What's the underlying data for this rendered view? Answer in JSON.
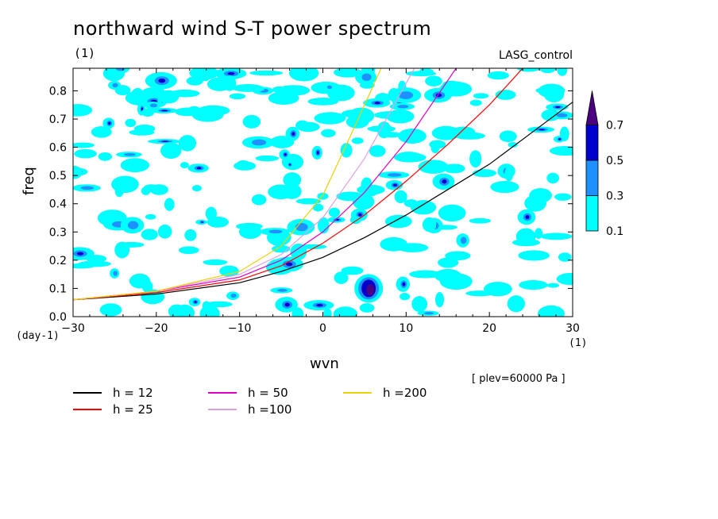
{
  "chart_data": {
    "type": "heatmap",
    "title": "northward wind S-T power spectrum",
    "subtitle_left": "(1)",
    "subtitle_right": "LASG_control",
    "xlabel": "wvn",
    "xlabel_unit": "(1)",
    "ylabel": "freq",
    "ylabel_unit": "(day-1)",
    "xlim": [
      -30,
      30
    ],
    "ylim": [
      0,
      0.88
    ],
    "xticks": [
      -30,
      -20,
      -10,
      0,
      10,
      20,
      30
    ],
    "yticks": [
      0.0,
      0.1,
      0.2,
      0.3,
      0.4,
      0.5,
      0.6,
      0.7,
      0.8
    ],
    "ytick_labels": [
      "0.0",
      "0.1",
      "0.2",
      "0.3",
      "0.4",
      "0.5",
      "0.6",
      "0.7",
      "0.8"
    ],
    "level_note": "[ plev=60000 Pa ]",
    "colorbar": {
      "levels": [
        "0.1",
        "0.3",
        "0.5",
        "0.7"
      ],
      "colors": [
        "#00ffff",
        "#1e90ff",
        "#0000cd",
        "#4b0082"
      ]
    },
    "series": [
      {
        "name": "h = 12",
        "color": "#000000",
        "x": [
          -30,
          -20,
          -10,
          -5,
          0,
          5,
          10,
          15,
          20,
          25,
          30
        ],
        "y": [
          0.06,
          0.08,
          0.12,
          0.16,
          0.21,
          0.28,
          0.36,
          0.45,
          0.54,
          0.65,
          0.76
        ]
      },
      {
        "name": "h = 25",
        "color": "#ff0000",
        "x": [
          -30,
          -20,
          -10,
          -5,
          0,
          5,
          10,
          15,
          20,
          24
        ],
        "y": [
          0.06,
          0.085,
          0.13,
          0.18,
          0.26,
          0.36,
          0.48,
          0.61,
          0.75,
          0.88
        ]
      },
      {
        "name": "h = 50",
        "color": "#e000c0",
        "x": [
          -30,
          -20,
          -10,
          -5,
          0,
          5,
          10,
          16
        ],
        "y": [
          0.06,
          0.09,
          0.14,
          0.2,
          0.3,
          0.44,
          0.62,
          0.88
        ]
      },
      {
        "name": "h =100",
        "color": "#e0a0e0",
        "x": [
          -30,
          -20,
          -10,
          -5,
          0,
          5,
          11
        ],
        "y": [
          0.06,
          0.09,
          0.15,
          0.22,
          0.35,
          0.56,
          0.88
        ]
      },
      {
        "name": "h =200",
        "color": "#f0d000",
        "x": [
          -30,
          -20,
          -10,
          -5,
          0,
          3,
          7
        ],
        "y": [
          0.06,
          0.09,
          0.16,
          0.25,
          0.43,
          0.62,
          0.88
        ]
      }
    ],
    "legend": {
      "position": "bottom",
      "items": [
        {
          "label": "h = 12",
          "color": "#000000"
        },
        {
          "label": "h = 25",
          "color": "#ff0000"
        },
        {
          "label": "h = 50",
          "color": "#e000c0"
        },
        {
          "label": "h =100",
          "color": "#e0a0e0"
        },
        {
          "label": "h =200",
          "color": "#f0d000"
        }
      ]
    }
  }
}
